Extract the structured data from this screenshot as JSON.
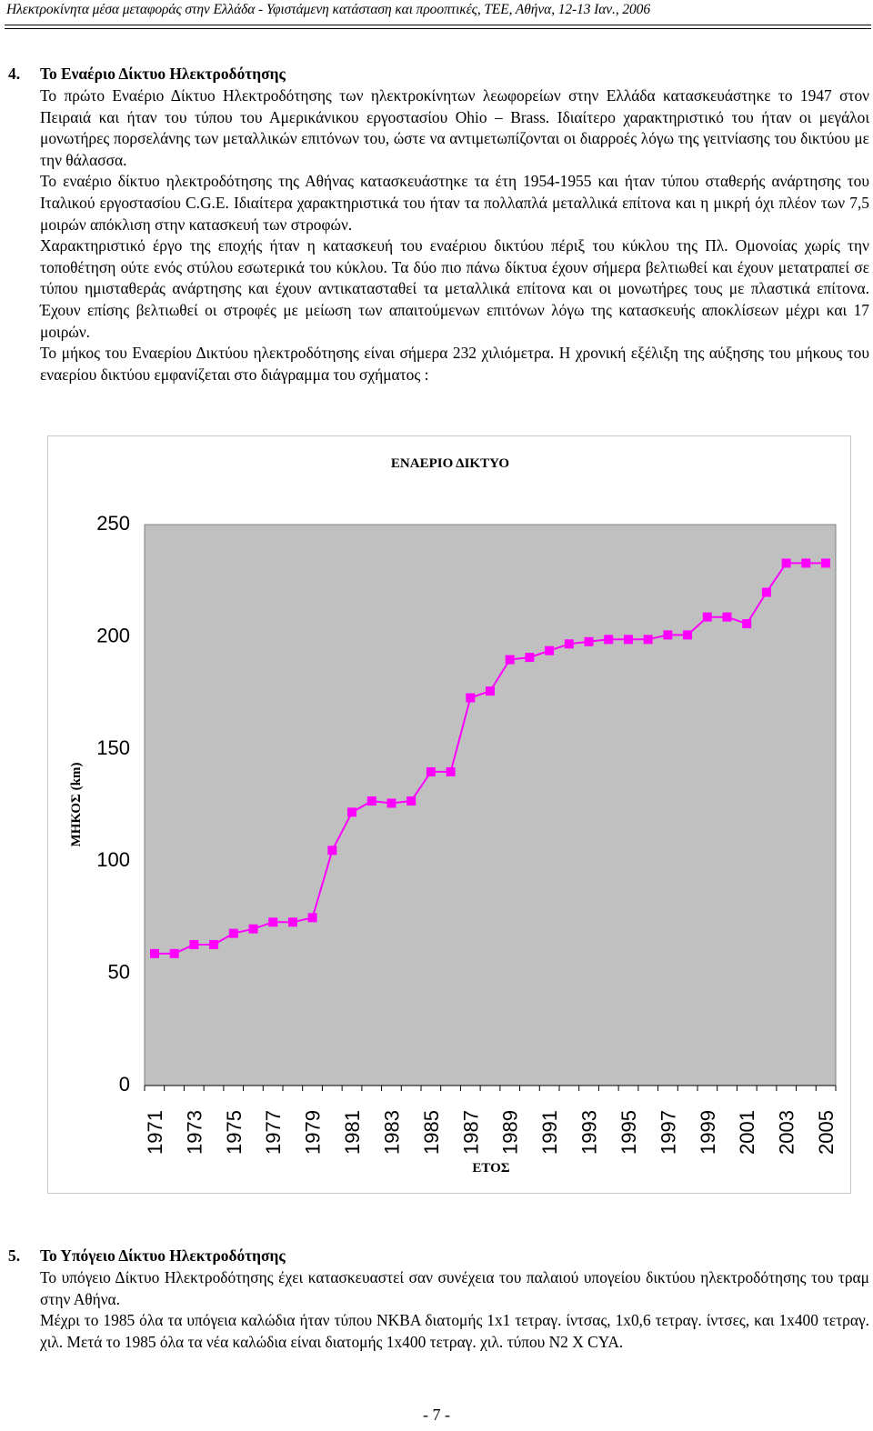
{
  "header": {
    "running_head": "Ηλεκτροκίνητα μέσα μεταφοράς στην Ελλάδα - Υφιστάμενη κατάσταση και προοπτικές, ΤΕΕ, Αθήνα, 12-13 Ιαν., 2006"
  },
  "section4": {
    "number": "4.",
    "title": "Το Εναέριο Δίκτυο Ηλεκτροδότησης",
    "paragraphs": [
      "Το πρώτο Εναέριο Δίκτυο Ηλεκτροδότησης των ηλεκτροκίνητων λεωφορείων στην Ελλάδα κατασκευάστηκε το 1947 στον Πειραιά και ήταν του τύπου του Αμερικάνικου εργοστασίου Ohio – Brass. Ιδιαίτερο χαρακτηριστικό του ήταν οι μεγάλοι μονωτήρες πορσελάνης των μεταλλικών επιτόνων του, ώστε να αντιμετωπίζονται οι διαρροές λόγω της γειτνίασης του δικτύου με την θάλασσα.",
      "Το εναέριο δίκτυο ηλεκτροδότησης της Αθήνας κατασκευάστηκε τα έτη 1954-1955 και ήταν τύπου σταθερής ανάρτησης του Ιταλικού εργοστασίου C.G.E. Ιδιαίτερα χαρακτηριστικά του ήταν τα πολλαπλά μεταλλικά επίτονα και η μικρή όχι πλέον των 7,5 μοιρών απόκλιση στην κατασκευή των στροφών.",
      "Χαρακτηριστικό έργο της εποχής ήταν η κατασκευή του εναέριου δικτύου πέριξ του κύκλου της Πλ. Ομονοίας χωρίς την τοποθέτηση ούτε ενός στύλου εσωτερικά του κύκλου. Τα δύο πιο πάνω δίκτυα έχουν σήμερα βελτιωθεί και έχουν μετατραπεί σε τύπου ημισταθεράς ανάρτησης και έχουν αντικατασταθεί τα μεταλλικά επίτονα και οι μονωτήρες τους με πλαστικά επίτονα. Έχουν επίσης βελτιωθεί οι στροφές με μείωση των απαιτούμενων επιτόνων λόγω της κατασκευής αποκλίσεων μέχρι και 17 μοιρών.",
      "Το μήκος του Εναερίου Δικτύου ηλεκτροδότησης είναι σήμερα 232 χιλιόμετρα. Η χρονική εξέλιξη της αύξησης του μήκους του εναερίου δικτύου εμφανίζεται στο διάγραμμα του σχήματος :"
    ]
  },
  "chart_data": {
    "type": "line",
    "title": "ΕΝΑΕΡΙΟ ΔΙΚΤΥΟ",
    "xlabel": "ΕΤΟΣ",
    "ylabel": "ΜΗΚΟΣ (km)",
    "ylim": [
      0,
      250
    ],
    "yticks": [
      "0",
      "50",
      "100",
      "150",
      "200",
      "250"
    ],
    "xticks": [
      "1971",
      "1973",
      "1975",
      "1977",
      "1979",
      "1981",
      "1983",
      "1985",
      "1987",
      "1989",
      "1991",
      "1993",
      "1995",
      "1997",
      "1999",
      "2001",
      "2003",
      "2005"
    ],
    "x": [
      1971,
      1972,
      1973,
      1974,
      1975,
      1976,
      1977,
      1978,
      1979,
      1980,
      1981,
      1982,
      1983,
      1984,
      1985,
      1986,
      1987,
      1988,
      1989,
      1990,
      1991,
      1992,
      1993,
      1994,
      1995,
      1996,
      1997,
      1998,
      1999,
      2000,
      2001,
      2002,
      2003,
      2004,
      2005
    ],
    "values": [
      58,
      58,
      62,
      62,
      67,
      69,
      72,
      72,
      74,
      104,
      121,
      126,
      125,
      126,
      139,
      139,
      172,
      175,
      189,
      190,
      193,
      196,
      197,
      198,
      198,
      198,
      200,
      200,
      208,
      208,
      205,
      219,
      232,
      232,
      232
    ],
    "grid": false,
    "legend": "none",
    "colors": {
      "plot_background": "#c0c0c0",
      "series": "#ff00ff",
      "frame": "#808080"
    }
  },
  "section5": {
    "number": "5.",
    "title": "Το Υπόγειο  Δίκτυο Ηλεκτροδότησης",
    "paragraphs": [
      "Το υπόγειο Δίκτυο Ηλεκτροδότησης έχει κατασκευαστεί σαν συνέχεια του παλαιού υπογείου δικτύου ηλεκτροδότησης του τραμ στην Αθήνα.",
      "Μέχρι το 1985 όλα τα υπόγεια καλώδια ήταν τύπου ΝΚΒΑ διατομής 1x1 τετραγ. ίντσας, 1x0,6 τετραγ. ίντσες, και 1x400 τετραγ. χιλ. Μετά το 1985 όλα τα νέα καλώδια είναι διατομής 1x400 τετραγ. χιλ. τύπου Ν2 Χ CYA."
    ]
  },
  "footer": {
    "page_number": "- 7 -"
  }
}
